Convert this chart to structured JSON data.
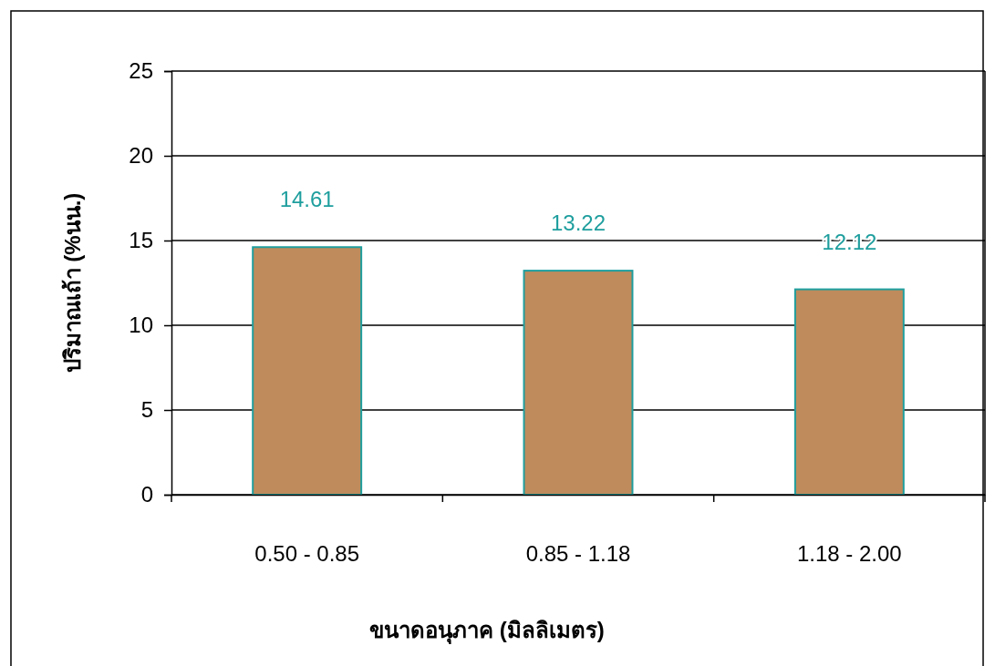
{
  "chart_data": {
    "type": "bar",
    "xlabel": "ขนาดอนุภาค (มิลลิเมตร)",
    "ylabel": "ปริมาณเถ้า (%นน.)",
    "categories": [
      "0.50 - 0.85",
      "0.85 - 1.18",
      "1.18 - 2.00"
    ],
    "values": [
      14.61,
      13.22,
      12.12
    ],
    "color": "#bf8b5c",
    "ylim": [
      0,
      25
    ],
    "yticks": [
      0,
      5,
      10,
      15,
      20,
      25
    ],
    "grid": "y",
    "data_labels": true
  }
}
